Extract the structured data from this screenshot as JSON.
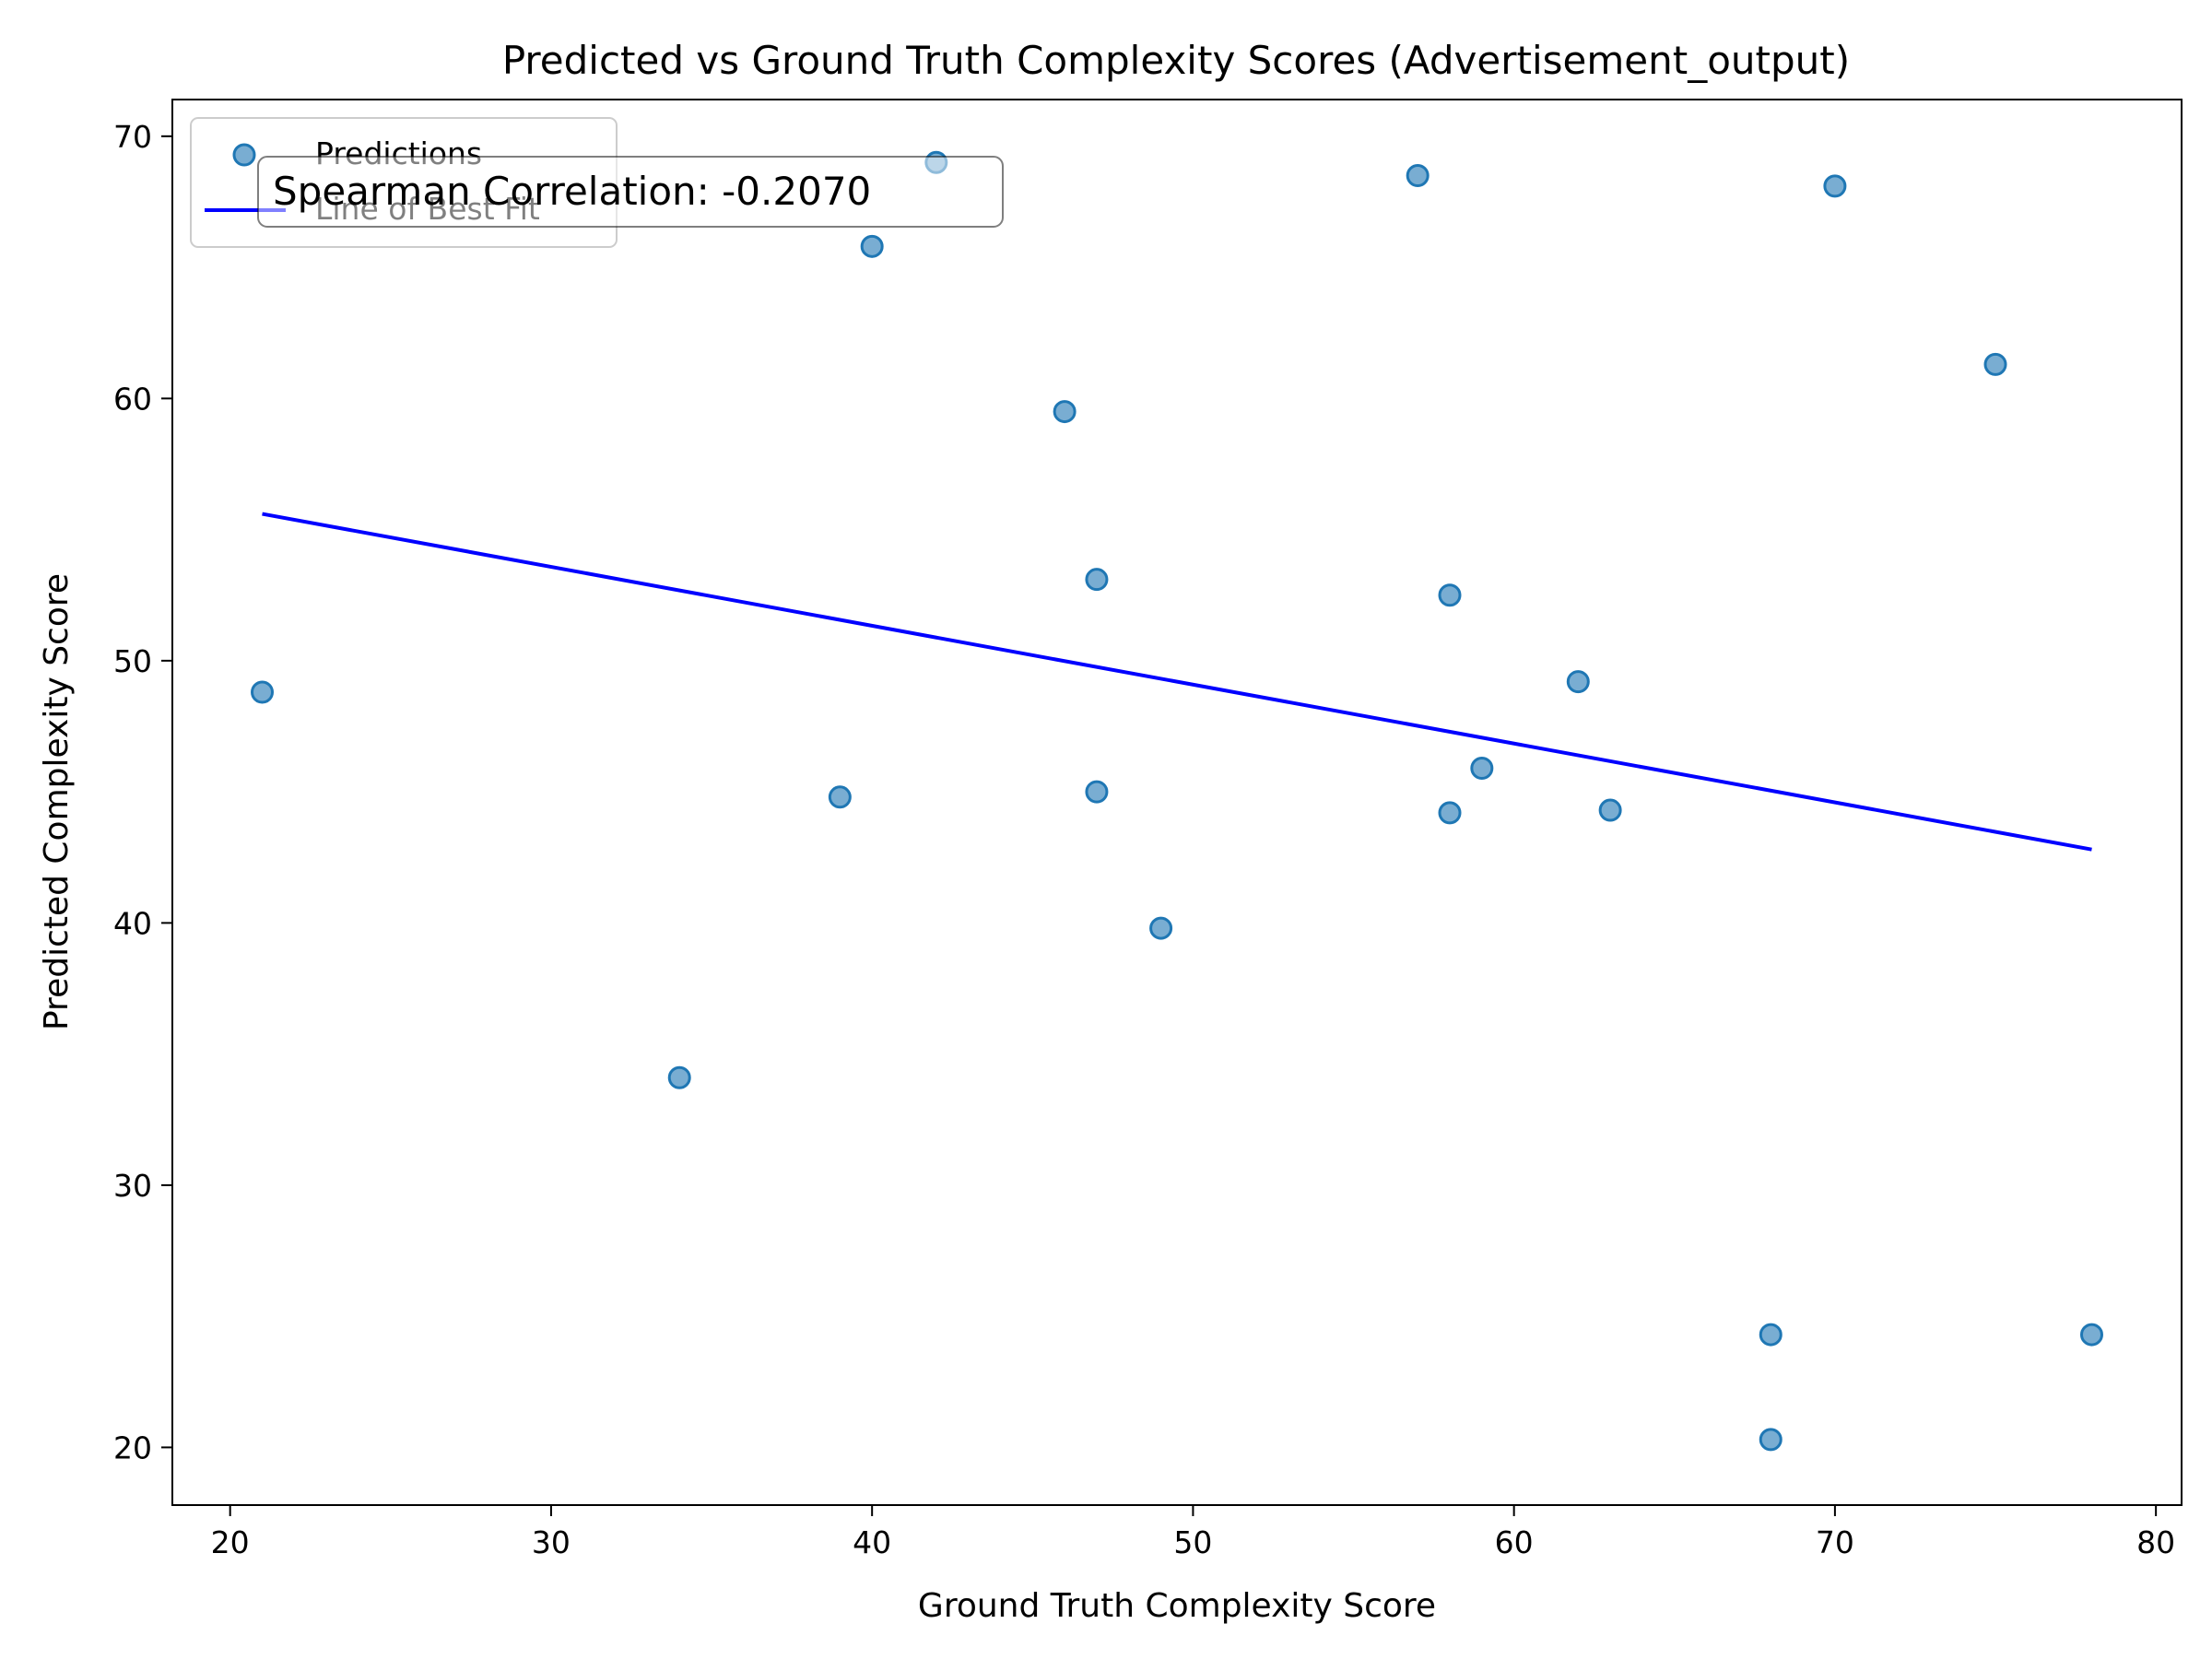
{
  "chart_data": {
    "type": "scatter",
    "title": "Predicted vs Ground Truth Complexity Scores (Advertisement_output)",
    "xlabel": "Ground Truth Complexity Score",
    "ylabel": "Predicted Complexity Score",
    "xlim": [
      18.2,
      80.8
    ],
    "ylim": [
      17.8,
      71.4
    ],
    "xticks": [
      20,
      30,
      40,
      50,
      60,
      70,
      80
    ],
    "yticks": [
      20,
      30,
      40,
      50,
      60,
      70
    ],
    "grid": false,
    "legend_position": "top-left",
    "legend": [
      {
        "label": "Predictions",
        "marker": "circle"
      },
      {
        "label": "Line of Best Fit",
        "marker": "line"
      }
    ],
    "annotation": "Spearman Correlation: -0.2070",
    "series": [
      {
        "name": "Predictions",
        "kind": "scatter",
        "color": "#1f77b4",
        "x": [
          21,
          34,
          39,
          40,
          42,
          46,
          47,
          47,
          49,
          57,
          58,
          58,
          59,
          62,
          63,
          68,
          68,
          70,
          75,
          78
        ],
        "y": [
          48.8,
          34.1,
          44.8,
          65.8,
          69.0,
          59.5,
          53.1,
          45.0,
          39.8,
          68.5,
          52.5,
          44.2,
          45.9,
          49.2,
          44.3,
          24.3,
          20.3,
          68.1,
          61.3,
          24.3
        ]
      },
      {
        "name": "Line of Best Fit",
        "kind": "line",
        "color": "#0000ff",
        "x": [
          21,
          78
        ],
        "y": [
          55.6,
          42.8
        ]
      }
    ]
  }
}
